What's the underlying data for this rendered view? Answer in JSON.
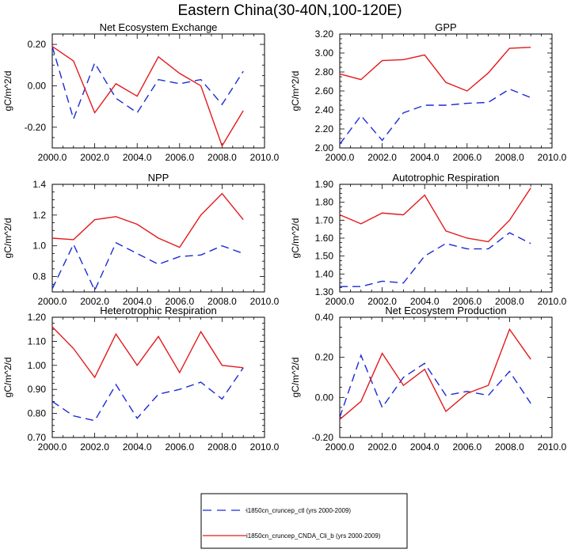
{
  "figure_title": "Eastern China(30-40N,100-120E)",
  "colors": {
    "ctl": "#1a2bd6",
    "exp": "#e31a1c"
  },
  "legend": [
    {
      "label": "i1850cn_cruncep_ctl (yrs 2000-2009)",
      "color": "#1a2bd6",
      "style": "dashed"
    },
    {
      "label": "i1850cn_cruncep_CNDA_Cli_b (yrs 2000-2009)",
      "color": "#e31a1c",
      "style": "solid"
    }
  ],
  "chart_data": [
    {
      "type": "line",
      "title": "Net Ecosystem Exchange",
      "ylabel": "gC/m^2/d",
      "xlim": [
        2000,
        2010
      ],
      "ylim": [
        -0.3,
        0.25
      ],
      "xticks": [
        2000,
        2002,
        2004,
        2006,
        2008,
        2010
      ],
      "xticklabels": [
        "2000.0",
        "2002.0",
        "2004.0",
        "2006.0",
        "2008.0",
        "2010.0"
      ],
      "yticks": [
        -0.2,
        0.0,
        0.2
      ],
      "yticklabels": [
        "-0.20",
        "0.00",
        "0.20"
      ],
      "x": [
        2000,
        2001,
        2002,
        2003,
        2004,
        2005,
        2006,
        2007,
        2008,
        2009
      ],
      "series": [
        {
          "name": "i1850cn_cruncep_ctl (yrs 2000-2009)",
          "style": "dashed",
          "color": "#1a2bd6",
          "values": [
            0.19,
            -0.16,
            0.11,
            -0.06,
            -0.13,
            0.03,
            0.01,
            0.03,
            -0.09,
            0.07
          ]
        },
        {
          "name": "i1850cn_cruncep_CNDA_Cli_b (yrs 2000-2009)",
          "style": "solid",
          "color": "#e31a1c",
          "values": [
            0.19,
            0.12,
            -0.13,
            0.01,
            -0.05,
            0.14,
            0.06,
            0.0,
            -0.29,
            -0.12
          ]
        }
      ]
    },
    {
      "type": "line",
      "title": "GPP",
      "ylabel": "gC/m^2/d",
      "xlim": [
        2000,
        2010
      ],
      "ylim": [
        2.0,
        3.2
      ],
      "xticks": [
        2000,
        2002,
        2004,
        2006,
        2008,
        2010
      ],
      "xticklabels": [
        "2000.0",
        "2002.0",
        "2004.0",
        "2006.0",
        "2008.0",
        "2010.0"
      ],
      "yticks": [
        2.0,
        2.2,
        2.4,
        2.6,
        2.8,
        3.0,
        3.2
      ],
      "yticklabels": [
        "2.00",
        "2.20",
        "2.40",
        "2.60",
        "2.80",
        "3.00",
        "3.20"
      ],
      "x": [
        2000,
        2001,
        2002,
        2003,
        2004,
        2005,
        2006,
        2007,
        2008,
        2009
      ],
      "series": [
        {
          "name": "i1850cn_cruncep_ctl (yrs 2000-2009)",
          "style": "dashed",
          "color": "#1a2bd6",
          "values": [
            2.04,
            2.34,
            2.08,
            2.37,
            2.45,
            2.45,
            2.47,
            2.48,
            2.62,
            2.53
          ]
        },
        {
          "name": "i1850cn_cruncep_CNDA_Cli_b (yrs 2000-2009)",
          "style": "solid",
          "color": "#e31a1c",
          "values": [
            2.78,
            2.72,
            2.92,
            2.93,
            2.98,
            2.69,
            2.6,
            2.79,
            3.05,
            3.06
          ]
        }
      ]
    },
    {
      "type": "line",
      "title": "NPP",
      "ylabel": "gC/m^2/d",
      "xlim": [
        2000,
        2010
      ],
      "ylim": [
        0.7,
        1.4
      ],
      "xticks": [
        2000,
        2002,
        2004,
        2006,
        2008,
        2010
      ],
      "xticklabels": [
        "2000.0",
        "2002.0",
        "2004.0",
        "2006.0",
        "2008.0",
        "2010.0"
      ],
      "yticks": [
        0.8,
        1.0,
        1.2,
        1.4
      ],
      "yticklabels": [
        "0.8",
        "1.0",
        "1.2",
        "1.4"
      ],
      "x": [
        2000,
        2001,
        2002,
        2003,
        2004,
        2005,
        2006,
        2007,
        2008,
        2009
      ],
      "series": [
        {
          "name": "i1850cn_cruncep_ctl (yrs 2000-2009)",
          "style": "dashed",
          "color": "#1a2bd6",
          "values": [
            0.72,
            1.01,
            0.71,
            1.02,
            0.95,
            0.88,
            0.93,
            0.94,
            1.0,
            0.95
          ]
        },
        {
          "name": "i1850cn_cruncep_CNDA_Cli_b (yrs 2000-2009)",
          "style": "solid",
          "color": "#e31a1c",
          "values": [
            1.05,
            1.04,
            1.17,
            1.19,
            1.14,
            1.05,
            0.99,
            1.2,
            1.34,
            1.17
          ]
        }
      ]
    },
    {
      "type": "line",
      "title": "Autotrophic Respiration",
      "ylabel": "gC/m^2/d",
      "xlim": [
        2000,
        2010
      ],
      "ylim": [
        1.3,
        1.9
      ],
      "xticks": [
        2000,
        2002,
        2004,
        2006,
        2008,
        2010
      ],
      "xticklabels": [
        "2000.0",
        "2002.0",
        "2004.0",
        "2006.0",
        "2008.0",
        "2010.0"
      ],
      "yticks": [
        1.3,
        1.4,
        1.5,
        1.6,
        1.7,
        1.8,
        1.9
      ],
      "yticklabels": [
        "1.30",
        "1.40",
        "1.50",
        "1.60",
        "1.70",
        "1.80",
        "1.90"
      ],
      "x": [
        2000,
        2001,
        2002,
        2003,
        2004,
        2005,
        2006,
        2007,
        2008,
        2009
      ],
      "series": [
        {
          "name": "i1850cn_cruncep_ctl (yrs 2000-2009)",
          "style": "dashed",
          "color": "#1a2bd6",
          "values": [
            1.33,
            1.33,
            1.36,
            1.35,
            1.5,
            1.57,
            1.54,
            1.54,
            1.63,
            1.57
          ]
        },
        {
          "name": "i1850cn_cruncep_CNDA_Cli_b (yrs 2000-2009)",
          "style": "solid",
          "color": "#e31a1c",
          "values": [
            1.73,
            1.68,
            1.74,
            1.73,
            1.84,
            1.64,
            1.6,
            1.58,
            1.7,
            1.88
          ]
        }
      ]
    },
    {
      "type": "line",
      "title": "Heterotrophic Respiration",
      "ylabel": "gC/m^2/d",
      "xlim": [
        2000,
        2010
      ],
      "ylim": [
        0.7,
        1.2
      ],
      "xticks": [
        2000,
        2002,
        2004,
        2006,
        2008,
        2010
      ],
      "xticklabels": [
        "2000.0",
        "2002.0",
        "2004.0",
        "2006.0",
        "2008.0",
        "2010.0"
      ],
      "yticks": [
        0.7,
        0.8,
        0.9,
        1.0,
        1.1,
        1.2
      ],
      "yticklabels": [
        "0.70",
        "0.80",
        "0.90",
        "1.00",
        "1.10",
        "1.20"
      ],
      "x": [
        2000,
        2001,
        2002,
        2003,
        2004,
        2005,
        2006,
        2007,
        2008,
        2009
      ],
      "series": [
        {
          "name": "i1850cn_cruncep_ctl (yrs 2000-2009)",
          "style": "dashed",
          "color": "#1a2bd6",
          "values": [
            0.85,
            0.79,
            0.77,
            0.92,
            0.78,
            0.88,
            0.9,
            0.93,
            0.86,
            0.99
          ]
        },
        {
          "name": "i1850cn_cruncep_CNDA_Cli_b (yrs 2000-2009)",
          "style": "solid",
          "color": "#e31a1c",
          "values": [
            1.16,
            1.07,
            0.95,
            1.13,
            1.0,
            1.12,
            0.97,
            1.14,
            1.0,
            0.99
          ]
        }
      ]
    },
    {
      "type": "line",
      "title": "Net Ecosystem Production",
      "ylabel": "gC/m^2/d",
      "xlim": [
        2000,
        2010
      ],
      "ylim": [
        -0.2,
        0.4
      ],
      "xticks": [
        2000,
        2002,
        2004,
        2006,
        2008,
        2010
      ],
      "xticklabels": [
        "2000.0",
        "2002.0",
        "2004.0",
        "2006.0",
        "2008.0",
        "2010.0"
      ],
      "yticks": [
        -0.2,
        0.0,
        0.2,
        0.4
      ],
      "yticklabels": [
        "-0.20",
        "0.00",
        "0.20",
        "0.40"
      ],
      "x": [
        2000,
        2001,
        2002,
        2003,
        2004,
        2005,
        2006,
        2007,
        2008,
        2009
      ],
      "series": [
        {
          "name": "i1850cn_cruncep_ctl (yrs 2000-2009)",
          "style": "dashed",
          "color": "#1a2bd6",
          "values": [
            -0.1,
            0.21,
            -0.05,
            0.1,
            0.17,
            0.01,
            0.03,
            0.01,
            0.13,
            -0.03
          ]
        },
        {
          "name": "i1850cn_cruncep_CNDA_Cli_b (yrs 2000-2009)",
          "style": "solid",
          "color": "#e31a1c",
          "values": [
            -0.11,
            -0.02,
            0.22,
            0.06,
            0.14,
            -0.07,
            0.02,
            0.06,
            0.34,
            0.19
          ]
        }
      ]
    }
  ]
}
